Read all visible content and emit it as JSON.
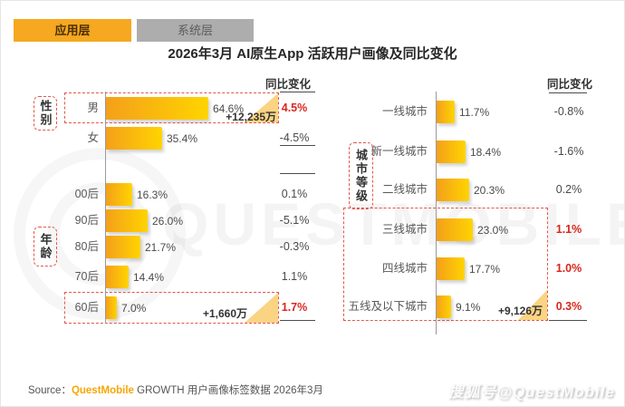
{
  "tabs": [
    {
      "label": "应用层",
      "active": true
    },
    {
      "label": "系统层",
      "active": false
    }
  ],
  "title": "2026年3月 AI原生App 活跃用户画像及同比变化",
  "yoy_header": "同比变化",
  "colors": {
    "accent": "#F6A820",
    "bar_gradient_start": "#F4A01A",
    "bar_gradient_end": "#FFD400",
    "highlight_red": "#D9261C",
    "dashed_border": "#E2574A",
    "inactive_tab": "#ADADAD",
    "triangle_fill": "#F9CB66"
  },
  "left_chart": {
    "groups": [
      {
        "label": "性别"
      },
      {
        "label": "年龄"
      }
    ],
    "rows": [
      {
        "label": "男",
        "value": 64.6,
        "value_label": "64.6%",
        "change": "4.5%",
        "annotation": "+12,235万"
      },
      {
        "label": "女",
        "value": 35.4,
        "value_label": "35.4%",
        "change": "-4.5%"
      },
      {
        "label": "00后",
        "value": 16.3,
        "value_label": "16.3%",
        "change": "0.1%"
      },
      {
        "label": "90后",
        "value": 26.0,
        "value_label": "26.0%",
        "change": "-5.1%"
      },
      {
        "label": "80后",
        "value": 21.7,
        "value_label": "21.7%",
        "change": "-0.3%"
      },
      {
        "label": "70后",
        "value": 14.4,
        "value_label": "14.4%",
        "change": "1.1%"
      },
      {
        "label": "60后",
        "value": 7.0,
        "value_label": "7.0%",
        "change": "1.7%",
        "annotation": "+1,660万"
      }
    ]
  },
  "right_chart": {
    "group_label": "城市等级",
    "rows": [
      {
        "label": "一线城市",
        "value": 11.7,
        "value_label": "11.7%",
        "change": "-0.8%"
      },
      {
        "label": "新一线城市",
        "value": 18.4,
        "value_label": "18.4%",
        "change": "-1.6%"
      },
      {
        "label": "二线城市",
        "value": 20.3,
        "value_label": "20.3%",
        "change": "0.2%"
      },
      {
        "label": "三线城市",
        "value": 23.0,
        "value_label": "23.0%",
        "change": "1.1%"
      },
      {
        "label": "四线城市",
        "value": 17.7,
        "value_label": "17.7%",
        "change": "1.0%"
      },
      {
        "label": "五线及以下城市",
        "value": 9.1,
        "value_label": "9.1%",
        "change": "0.3%",
        "annotation": "+9,126万"
      }
    ]
  },
  "footer": {
    "source_prefix": "Source：",
    "brand": "QuestMobile",
    "source_rest": " GROWTH 用户画像标签数据 2026年3月",
    "platform_watermark": "搜狐号@QuestMobile"
  },
  "brand_watermark": "QUESTMOBILE",
  "chart_data": [
    {
      "type": "bar",
      "orientation": "horizontal",
      "title": "2026年3月 AI原生App 活跃用户画像及同比变化",
      "panel": "性别 / 年龄",
      "categories": [
        "男",
        "女",
        "00后",
        "90后",
        "80后",
        "70后",
        "60后"
      ],
      "values": [
        64.6,
        35.4,
        16.3,
        26.0,
        21.7,
        14.4,
        7.0
      ],
      "unit": "%",
      "yoy_change_pct": [
        4.5,
        -4.5,
        0.1,
        -5.1,
        -0.3,
        1.1,
        1.7
      ],
      "highlighted_categories": [
        "男",
        "60后"
      ],
      "annotations": {
        "男": "+12,235万",
        "60后": "+1,660万"
      },
      "legend": "off",
      "grid": "off"
    },
    {
      "type": "bar",
      "orientation": "horizontal",
      "panel": "城市等级",
      "categories": [
        "一线城市",
        "新一线城市",
        "二线城市",
        "三线城市",
        "四线城市",
        "五线及以下城市"
      ],
      "values": [
        11.7,
        18.4,
        20.3,
        23.0,
        17.7,
        9.1
      ],
      "unit": "%",
      "yoy_change_pct": [
        -0.8,
        -1.6,
        0.2,
        1.1,
        1.0,
        0.3
      ],
      "highlighted_categories": [
        "三线城市",
        "四线城市",
        "五线及以下城市"
      ],
      "annotations": {
        "五线及以下城市": "+9,126万"
      },
      "legend": "off",
      "grid": "off"
    }
  ]
}
